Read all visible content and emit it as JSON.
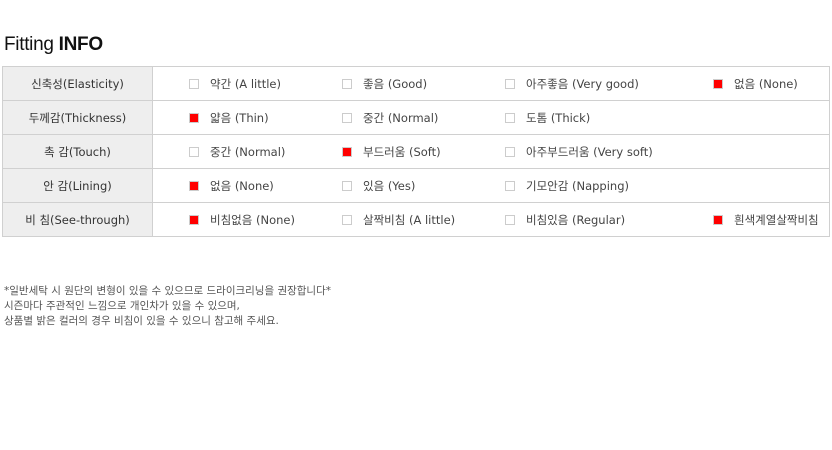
{
  "title_light": "Fitting ",
  "title_bold": "INFO",
  "accent_color": "#ff0000",
  "rows": [
    {
      "label": "신축성(Elasticity)",
      "options": [
        {
          "text": "약간 (A little)",
          "checked": false
        },
        {
          "text": "좋음 (Good)",
          "checked": false
        },
        {
          "text": "아주좋음 (Very good)",
          "checked": false
        },
        {
          "text": "없음 (None)",
          "checked": true
        }
      ]
    },
    {
      "label": "두께감(Thickness)",
      "options": [
        {
          "text": "얇음 (Thin)",
          "checked": true
        },
        {
          "text": "중간 (Normal)",
          "checked": false
        },
        {
          "text": "도톰 (Thick)",
          "checked": false
        }
      ]
    },
    {
      "label": "촉 감(Touch)",
      "options": [
        {
          "text": "중간 (Normal)",
          "checked": false
        },
        {
          "text": "부드러움 (Soft)",
          "checked": true
        },
        {
          "text": "아주부드러움 (Very soft)",
          "checked": false
        }
      ]
    },
    {
      "label": "안 감(Lining)",
      "options": [
        {
          "text": "없음 (None)",
          "checked": true
        },
        {
          "text": "있음 (Yes)",
          "checked": false
        },
        {
          "text": "기모안감 (Napping)",
          "checked": false
        }
      ]
    },
    {
      "label": "비 침(See-through)",
      "options": [
        {
          "text": "비침없음 (None)",
          "checked": true
        },
        {
          "text": "살짝비침 (A little)",
          "checked": false
        },
        {
          "text": "비침있음 (Regular)",
          "checked": false
        },
        {
          "text": "흰색계열살짝비침",
          "checked": true
        }
      ]
    }
  ],
  "notes": [
    "*일반세탁 시 원단의 변형이 있을 수 있으므로 드라이크리닝을 권장합니다*",
    "시즌마다 주관적인 느낌으로 개인차가 있을 수 있으며,",
    "상품별 밝은 컬러의 경우 비침이 있을 수 있으니 참고해 주세요."
  ]
}
